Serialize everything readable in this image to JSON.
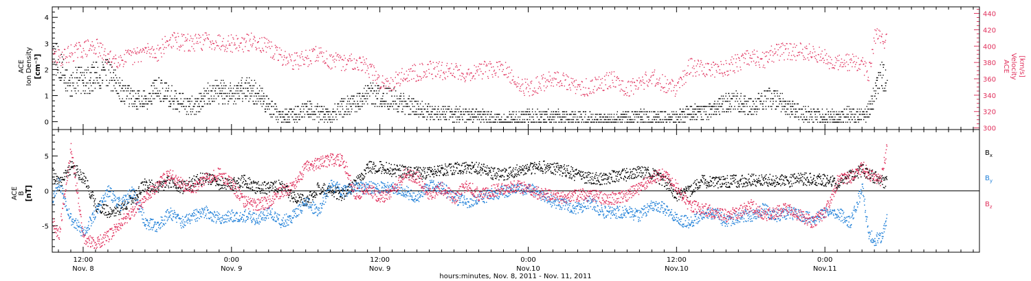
{
  "colors": {
    "black": "#000000",
    "pink": "#e0305c",
    "blue": "#1e7fd8"
  },
  "xaxis": {
    "label": "hours:minutes, Nov.  8, 2011 - Nov. 11, 2011",
    "ticks": [
      {
        "hours": 12,
        "time": "12:00",
        "date": "Nov. 8"
      },
      {
        "hours": 24,
        "time": "0:00",
        "date": "Nov. 9"
      },
      {
        "hours": 36,
        "time": "12:00",
        "date": "Nov. 9"
      },
      {
        "hours": 48,
        "time": "0:00",
        "date": "Nov.10"
      },
      {
        "hours": 60,
        "time": "12:00",
        "date": "Nov.10"
      },
      {
        "hours": 72,
        "time": "0:00",
        "date": "Nov.11"
      }
    ]
  },
  "chart_data": [
    {
      "type": "scatter",
      "x_units": "hours from Nov. 8, 2011 0:00 UT",
      "xlim": [
        9.5,
        84.5
      ],
      "left_axis": {
        "label_lines": [
          "ACE",
          "Ion Density"
        ],
        "units_label": "[cm⁻³]",
        "ylim": [
          -0.3,
          4.4
        ],
        "ticks": [
          "0",
          "1",
          "2",
          "3",
          "4"
        ]
      },
      "right_axis": {
        "label_lines": [
          "ACE",
          "Velocity"
        ],
        "units_label": "[km/s]",
        "ylim": [
          298,
          448
        ],
        "ticks": [
          "300",
          "320",
          "340",
          "360",
          "380",
          "400",
          "420",
          "440"
        ]
      },
      "series": [
        {
          "key": "density",
          "axis": "left",
          "color": "black",
          "x": [
            9.5,
            10,
            10.5,
            11,
            11.5,
            12,
            13,
            14,
            15,
            16,
            17,
            18,
            19,
            20,
            21,
            22,
            23,
            24,
            25,
            26,
            27,
            28,
            29,
            30,
            31,
            32,
            33,
            34,
            35,
            36,
            37,
            38,
            39,
            40,
            41,
            42,
            43,
            44,
            45,
            46,
            47,
            48,
            49,
            50,
            51,
            52,
            53,
            54,
            55,
            56,
            57,
            58,
            59,
            60,
            61,
            62,
            63,
            64,
            65,
            66,
            67,
            68,
            69,
            70,
            71,
            72,
            73,
            74,
            75,
            75.5,
            76,
            76.5,
            77
          ],
          "y": [
            2.6,
            2.3,
            1.7,
            1.3,
            1.7,
            1.5,
            1.8,
            1.9,
            1.2,
            0.9,
            0.8,
            1.3,
            1.0,
            0.7,
            0.6,
            1.1,
            1.2,
            1.0,
            1.3,
            1.1,
            0.6,
            0.2,
            0.25,
            0.5,
            0.35,
            0.25,
            0.6,
            0.7,
            1.1,
            1.0,
            0.9,
            0.7,
            0.5,
            0.4,
            0.35,
            0.3,
            0.25,
            0.2,
            0.15,
            0.1,
            0.15,
            0.2,
            0.2,
            0.2,
            0.15,
            0.15,
            0.12,
            0.1,
            0.12,
            0.15,
            0.2,
            0.15,
            0.15,
            0.15,
            0.35,
            0.35,
            0.5,
            0.75,
            0.8,
            0.55,
            0.85,
            0.9,
            0.6,
            0.35,
            0.3,
            0.2,
            0.2,
            0.3,
            0.2,
            0.4,
            1.1,
            1.8,
            1.6
          ]
        },
        {
          "key": "velocity",
          "axis": "right",
          "color": "pink",
          "x": [
            9.5,
            10,
            11,
            12,
            13,
            14,
            15,
            16,
            17,
            18,
            19,
            20,
            21,
            22,
            23,
            24,
            25,
            26,
            27,
            28,
            29,
            30,
            31,
            32,
            33,
            34,
            35,
            36,
            37,
            38,
            39,
            40,
            41,
            42,
            43,
            44,
            45,
            46,
            47,
            48,
            49,
            50,
            51,
            52,
            53,
            54,
            55,
            56,
            57,
            58,
            59,
            60,
            61,
            62,
            63,
            64,
            65,
            66,
            67,
            68,
            69,
            70,
            71,
            72,
            73,
            74,
            75,
            75.5,
            76,
            76.5,
            77
          ],
          "y": [
            387,
            386,
            392,
            397,
            400,
            385,
            385,
            387,
            395,
            393,
            408,
            405,
            404,
            408,
            406,
            404,
            404,
            407,
            397,
            388,
            382,
            385,
            392,
            382,
            380,
            383,
            375,
            356,
            357,
            365,
            369,
            372,
            370,
            371,
            366,
            371,
            372,
            372,
            355,
            349,
            354,
            362,
            357,
            348,
            351,
            357,
            361,
            348,
            357,
            362,
            355,
            347,
            375,
            373,
            372,
            375,
            381,
            386,
            382,
            394,
            394,
            394,
            392,
            385,
            380,
            381,
            377,
            366,
            412,
            410,
            406
          ]
        }
      ]
    },
    {
      "type": "scatter",
      "x_units": "hours from Nov. 8, 2011 0:00 UT",
      "xlim": [
        9.5,
        84.5
      ],
      "left_axis": {
        "label_lines": [
          "ACE",
          "B"
        ],
        "units_label": "[nT]",
        "ylim": [
          -8.8,
          8.8
        ],
        "ticks": [
          "-5",
          "0",
          "5"
        ]
      },
      "zero_line": true,
      "series": [
        {
          "key": "bx",
          "name": "B",
          "subscript": "x",
          "color": "black",
          "x": [
            9.5,
            10,
            11,
            12,
            13,
            14,
            15,
            16,
            17,
            18,
            19,
            20,
            21,
            22,
            23,
            24,
            25,
            26,
            27,
            28,
            29,
            30,
            31,
            32,
            33,
            34,
            35,
            36,
            37,
            38,
            39,
            40,
            41,
            42,
            43,
            44,
            45,
            46,
            47,
            48,
            49,
            50,
            51,
            52,
            53,
            54,
            55,
            56,
            57,
            58,
            59,
            60,
            61,
            62,
            63,
            64,
            65,
            66,
            67,
            68,
            69,
            70,
            71,
            72,
            73,
            74,
            75,
            75.5,
            76,
            76.5,
            77
          ],
          "y": [
            2.5,
            1.0,
            3.5,
            2.0,
            -2.0,
            -3.0,
            -2.5,
            -1.0,
            1.0,
            0.5,
            1.5,
            0.5,
            1.5,
            2.0,
            1.0,
            1.0,
            1.5,
            0.5,
            0.5,
            0.8,
            -1.0,
            -1.5,
            0.5,
            0.0,
            -0.5,
            1.0,
            3.5,
            3.5,
            3.0,
            2.8,
            2.6,
            2.7,
            3.0,
            3.2,
            3.5,
            3.3,
            2.6,
            2.5,
            2.9,
            3.2,
            3.5,
            3.3,
            3.0,
            2.2,
            1.8,
            1.8,
            2.2,
            2.4,
            2.8,
            2.5,
            1.5,
            -0.5,
            0.0,
            1.5,
            1.2,
            1.4,
            1.5,
            1.6,
            1.5,
            1.6,
            1.5,
            1.8,
            1.7,
            1.6,
            1.2,
            2.2,
            3.0,
            2.5,
            2.0,
            1.5,
            1.2
          ]
        },
        {
          "key": "by",
          "name": "B",
          "subscript": "y",
          "color": "blue",
          "x": [
            9.5,
            10,
            11,
            12,
            13,
            14,
            15,
            16,
            17,
            18,
            19,
            20,
            21,
            22,
            23,
            24,
            25,
            26,
            27,
            28,
            29,
            30,
            31,
            32,
            33,
            34,
            35,
            36,
            37,
            38,
            39,
            40,
            41,
            42,
            43,
            44,
            45,
            46,
            47,
            48,
            49,
            50,
            51,
            52,
            53,
            54,
            55,
            56,
            57,
            58,
            59,
            60,
            61,
            62,
            63,
            64,
            65,
            66,
            67,
            68,
            69,
            70,
            71,
            72,
            73,
            74,
            75,
            75.5,
            76,
            76.5,
            77
          ],
          "y": [
            -1.0,
            1.5,
            -4.0,
            -6.0,
            -3.0,
            0.0,
            -2.0,
            0.0,
            -4.5,
            -5.0,
            -3.0,
            -4.5,
            -3.5,
            -3.0,
            -4.0,
            -3.5,
            -3.5,
            -4.0,
            -3.0,
            -4.5,
            -3.5,
            -1.5,
            -3.0,
            1.0,
            0.0,
            0.5,
            0.5,
            0.5,
            0.5,
            0.0,
            -1.0,
            1.0,
            0.5,
            -1.0,
            -1.5,
            -1.0,
            -0.5,
            0.0,
            0.2,
            0.5,
            -0.5,
            -1.5,
            -2.0,
            -2.5,
            -1.5,
            -3.0,
            -3.0,
            -3.0,
            -3.5,
            -2.0,
            -2.5,
            -4.0,
            -4.5,
            -3.5,
            -3.0,
            -4.5,
            -3.5,
            -3.5,
            -2.5,
            -3.5,
            -3.0,
            -3.5,
            -4.0,
            -3.0,
            -3.0,
            -4.5,
            0.5,
            -6.0,
            -7.0,
            -6.5,
            -4.0
          ]
        },
        {
          "key": "bz",
          "name": "B",
          "subscript": "z",
          "color": "pink",
          "x": [
            9.5,
            10,
            11,
            12,
            13,
            14,
            15,
            16,
            17,
            18,
            19,
            20,
            21,
            22,
            23,
            24,
            25,
            26,
            27,
            28,
            29,
            30,
            31,
            32,
            33,
            34,
            35,
            36,
            37,
            38,
            39,
            40,
            41,
            42,
            43,
            44,
            45,
            46,
            47,
            48,
            49,
            50,
            51,
            52,
            53,
            54,
            55,
            56,
            57,
            58,
            59,
            60,
            61,
            62,
            63,
            64,
            65,
            66,
            67,
            68,
            69,
            70,
            71,
            72,
            73,
            74,
            75,
            75.5,
            76,
            76.5,
            77
          ],
          "y": [
            -4.0,
            -6.5,
            6.5,
            -7.0,
            -7.5,
            -6.5,
            -4.5,
            -3.0,
            -1.0,
            1.0,
            2.5,
            1.0,
            0.5,
            2.0,
            2.5,
            1.0,
            -1.5,
            -2.0,
            -1.5,
            0.0,
            0.5,
            3.5,
            4.0,
            4.5,
            4.5,
            -0.5,
            0.5,
            -1.0,
            0.0,
            2.5,
            2.0,
            -0.5,
            0.5,
            -1.0,
            1.0,
            -0.5,
            0.0,
            0.5,
            0.7,
            0.3,
            -0.5,
            -0.5,
            -1.0,
            -0.5,
            -0.5,
            -1.0,
            -1.0,
            -0.5,
            0.5,
            2.0,
            2.5,
            0.5,
            -2.0,
            -2.5,
            -3.0,
            -3.5,
            -3.0,
            -2.0,
            -3.5,
            -3.0,
            -2.5,
            -3.5,
            -4.5,
            -3.0,
            1.5,
            2.0,
            3.5,
            2.5,
            2.0,
            1.5,
            6.5
          ]
        }
      ]
    }
  ]
}
